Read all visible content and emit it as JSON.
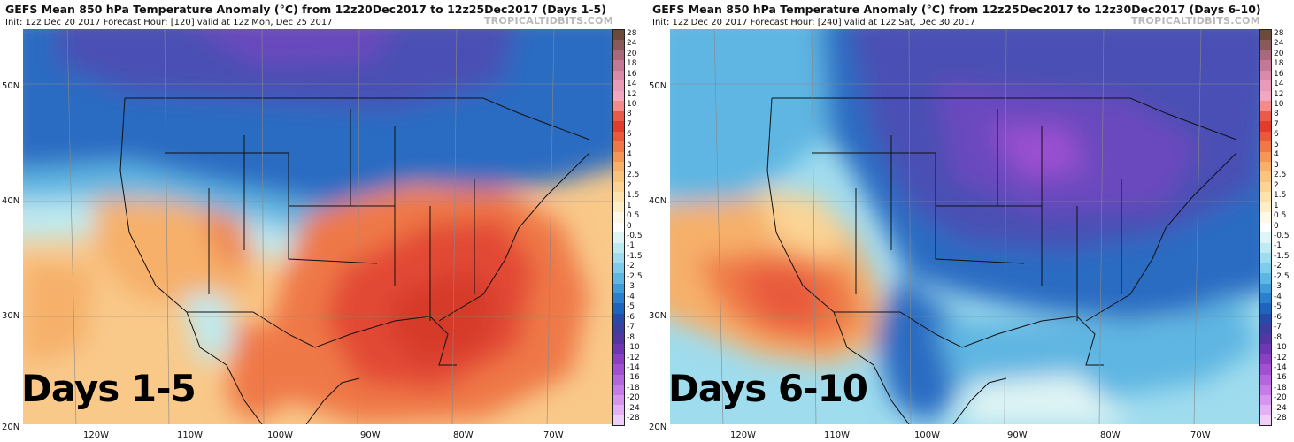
{
  "brand": "TROPICALTIDBITS.COM",
  "lat_labels": [
    "50N",
    "40N",
    "30N",
    "20N"
  ],
  "lon_labels": [
    "120W",
    "110W",
    "100W",
    "90W",
    "80W",
    "70W"
  ],
  "panels": [
    {
      "title": "GEFS Mean 850 hPa Temperature Anomaly (°C) from 12z20Dec2017 to 12z25Dec2017 (Days 1-5)",
      "subtitle": "Init: 12z Dec 20 2017   Forecast Hour: [120]   valid at 12z Mon, Dec 25 2017",
      "days_label": "Days 1-5",
      "anomaly_pattern": "cold-north-warm-southeast"
    },
    {
      "title": "GEFS Mean 850 hPa Temperature Anomaly (°C) from 12z25Dec2017 to 12z30Dec2017 (Days 6-10)",
      "subtitle": "Init: 12z Dec 20 2017   Forecast Hour: [240]   valid at 12z Sat, Dec 30 2017",
      "days_label": "Days 6-10",
      "anomaly_pattern": "cold-east-warm-southwest"
    }
  ],
  "colorbar": {
    "labels": [
      "28",
      "24",
      "20",
      "18",
      "16",
      "14",
      "12",
      "10",
      "8",
      "7",
      "6",
      "5",
      "4",
      "3",
      "2.5",
      "2",
      "1.5",
      "1",
      "0.5",
      "0",
      "-0.5",
      "-1",
      "-1.5",
      "-2",
      "-2.5",
      "-3",
      "-4",
      "-5",
      "-6",
      "-7",
      "-8",
      "-10",
      "-12",
      "-14",
      "-16",
      "-18",
      "-20",
      "-24",
      "-28"
    ],
    "colors": [
      "#6b4a3a",
      "#8a5a5a",
      "#a86a7a",
      "#c27a94",
      "#d88aa8",
      "#e89ab8",
      "#f2a6c0",
      "#f48a8a",
      "#e85a4a",
      "#e23c2c",
      "#ea5a3a",
      "#ef7846",
      "#f39656",
      "#f6b06a",
      "#f9c47e",
      "#fbd494",
      "#fde2ac",
      "#fdeec6",
      "#fef8e6",
      "#ffffff",
      "#dff4f4",
      "#bfeaf0",
      "#9fdcee",
      "#7ecbea",
      "#5eb6e2",
      "#3f9cd8",
      "#2a80cc",
      "#1f64bc",
      "#2a4aa8",
      "#3e3ea0",
      "#5436a0",
      "#6e36b0",
      "#8a40c0",
      "#a050d0",
      "#b466dc",
      "#c67ce6",
      "#d696ee",
      "#e4b2f4",
      "#f0cefa"
    ]
  }
}
